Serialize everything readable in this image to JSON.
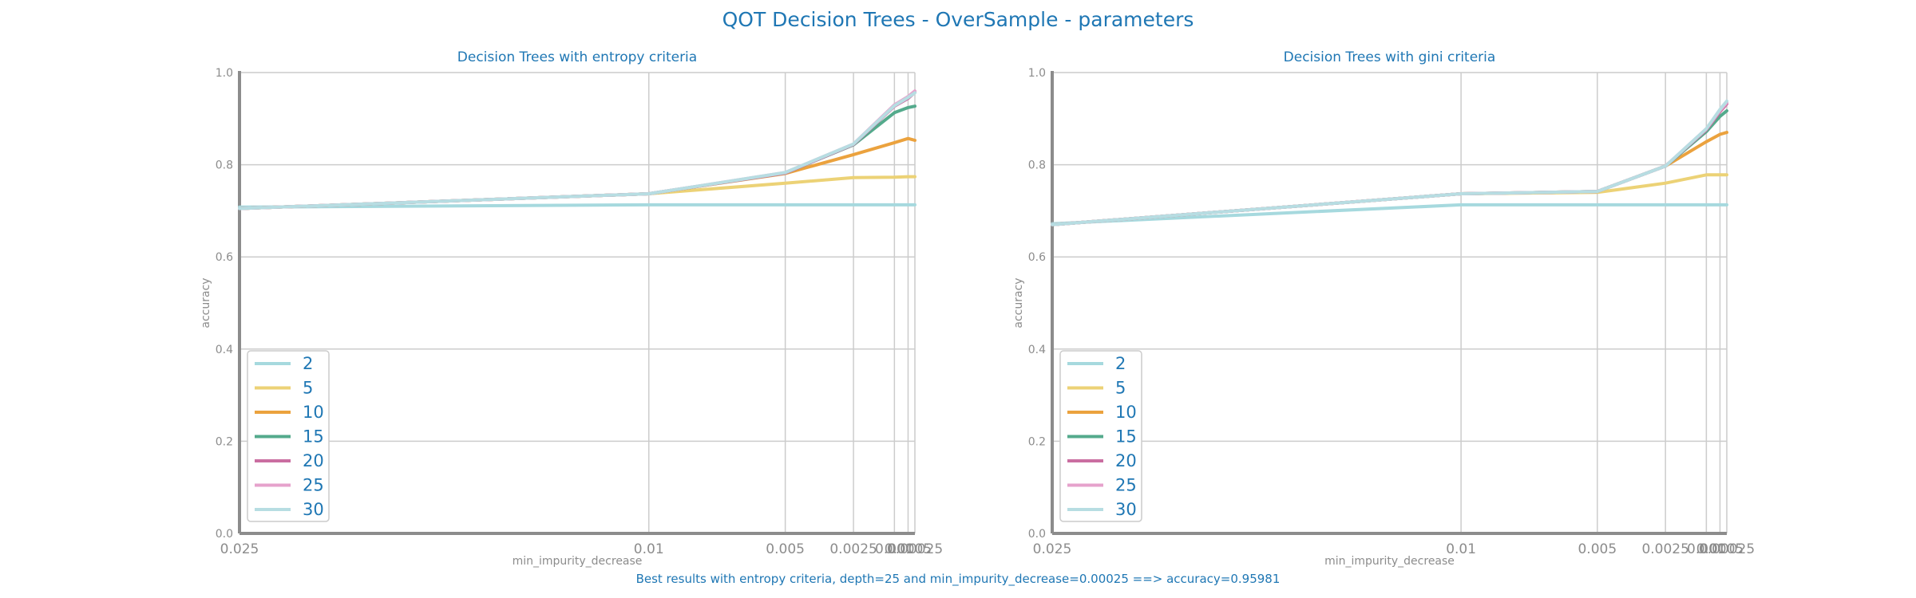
{
  "figure": {
    "title": "QOT Decision Trees - OverSample - parameters",
    "footer": "Best results with entropy criteria, depth=25 and min_impurity_decrease=0.00025 ==> accuracy=0.95981"
  },
  "colors": {
    "2": "#a6d9de",
    "5": "#ecd276",
    "10": "#eba23e",
    "15": "#54aa8c",
    "20": "#ca6ea1",
    "25": "#e6a2cc",
    "30": "#b7dde2",
    "grid": "#cccccc",
    "axis": "#8c8c8c",
    "text": "#1f77b4"
  },
  "chart_data": [
    {
      "type": "line",
      "title": "Decision Trees with entropy criteria",
      "xlabel": "min_impurity_decrease",
      "ylabel": "accuracy",
      "x": [
        0.025,
        0.01,
        0.005,
        0.0025,
        0.001,
        0.0005,
        0.00025
      ],
      "xtick_labels": [
        "0.025",
        "0.01",
        "0.005",
        "0.0025",
        "0.001",
        "0.0005",
        "0.00025"
      ],
      "ylim": [
        0,
        1.0
      ],
      "yticks": [
        "0.0",
        "0.2",
        "0.4",
        "0.6",
        "0.8",
        "1.0"
      ],
      "grid": true,
      "legend": "lower-left",
      "series": [
        {
          "name": "2",
          "values": [
            0.708,
            0.713,
            0.713,
            0.713,
            0.713,
            0.713,
            0.713
          ]
        },
        {
          "name": "5",
          "values": [
            0.705,
            0.737,
            0.76,
            0.772,
            0.773,
            0.774,
            0.774
          ]
        },
        {
          "name": "10",
          "values": [
            0.705,
            0.737,
            0.781,
            0.822,
            0.848,
            0.857,
            0.853
          ]
        },
        {
          "name": "15",
          "values": [
            0.705,
            0.737,
            0.782,
            0.843,
            0.913,
            0.924,
            0.927
          ]
        },
        {
          "name": "20",
          "values": [
            0.705,
            0.737,
            0.782,
            0.844,
            0.927,
            0.944,
            0.957
          ]
        },
        {
          "name": "25",
          "values": [
            0.705,
            0.737,
            0.783,
            0.845,
            0.93,
            0.948,
            0.96
          ]
        },
        {
          "name": "30",
          "values": [
            0.705,
            0.737,
            0.783,
            0.845,
            0.928,
            0.946,
            0.956
          ]
        }
      ]
    },
    {
      "type": "line",
      "title": "Decision Trees with gini criteria",
      "xlabel": "min_impurity_decrease",
      "ylabel": "accuracy",
      "x": [
        0.025,
        0.01,
        0.005,
        0.0025,
        0.001,
        0.0005,
        0.00025
      ],
      "xtick_labels": [
        "0.025",
        "0.01",
        "0.005",
        "0.0025",
        "0.001",
        "0.0005",
        "0.00025"
      ],
      "ylim": [
        0,
        1.0
      ],
      "yticks": [
        "0.0",
        "0.2",
        "0.4",
        "0.6",
        "0.8",
        "1.0"
      ],
      "grid": true,
      "legend": "lower-left",
      "series": [
        {
          "name": "2",
          "values": [
            0.672,
            0.713,
            0.713,
            0.713,
            0.713,
            0.713,
            0.713
          ]
        },
        {
          "name": "5",
          "values": [
            0.67,
            0.737,
            0.74,
            0.76,
            0.778,
            0.778,
            0.778
          ]
        },
        {
          "name": "10",
          "values": [
            0.67,
            0.737,
            0.742,
            0.797,
            0.85,
            0.866,
            0.87
          ]
        },
        {
          "name": "15",
          "values": [
            0.67,
            0.737,
            0.742,
            0.797,
            0.872,
            0.905,
            0.917
          ]
        },
        {
          "name": "20",
          "values": [
            0.67,
            0.737,
            0.742,
            0.797,
            0.876,
            0.915,
            0.932
          ]
        },
        {
          "name": "25",
          "values": [
            0.67,
            0.737,
            0.742,
            0.797,
            0.878,
            0.918,
            0.935
          ]
        },
        {
          "name": "30",
          "values": [
            0.67,
            0.737,
            0.742,
            0.797,
            0.878,
            0.92,
            0.938
          ]
        }
      ]
    }
  ]
}
